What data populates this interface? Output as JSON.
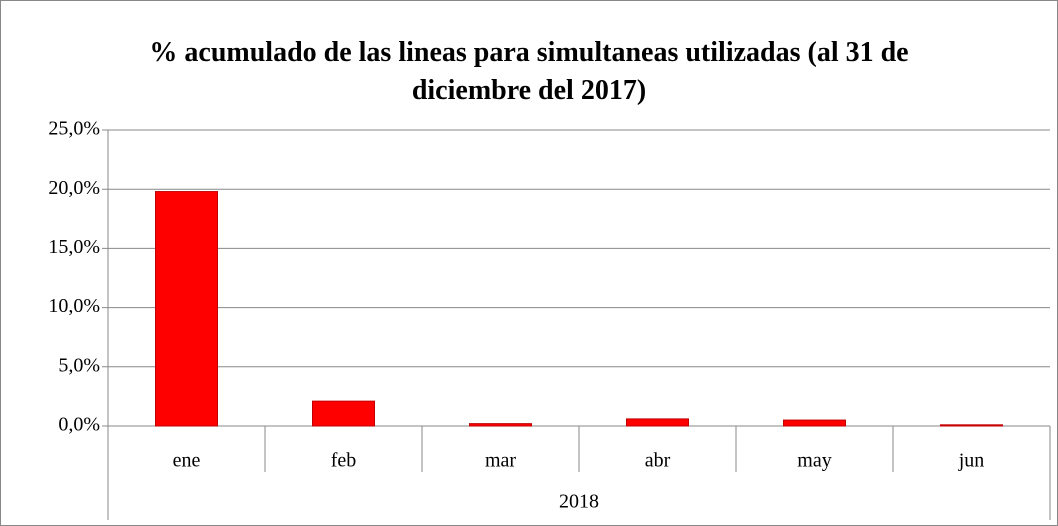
{
  "chart_data": {
    "type": "bar",
    "title": "% acumulado de las lineas para simultaneas utilizadas (al 31 de diciembre del 2017)",
    "categories": [
      "ene",
      "feb",
      "mar",
      "abr",
      "may",
      "jun"
    ],
    "group_label": "2018",
    "values": [
      19.8,
      2.1,
      0.2,
      0.6,
      0.5,
      0.1
    ],
    "color": "#ff0000",
    "ylim": [
      0,
      25
    ],
    "yticks": [
      {
        "value": 0,
        "label": "0,0%"
      },
      {
        "value": 5,
        "label": "5,0%"
      },
      {
        "value": 10,
        "label": "10,0%"
      },
      {
        "value": 15,
        "label": "15,0%"
      },
      {
        "value": 20,
        "label": "20,0%"
      },
      {
        "value": 25,
        "label": "25,0%"
      }
    ],
    "grid": true
  }
}
